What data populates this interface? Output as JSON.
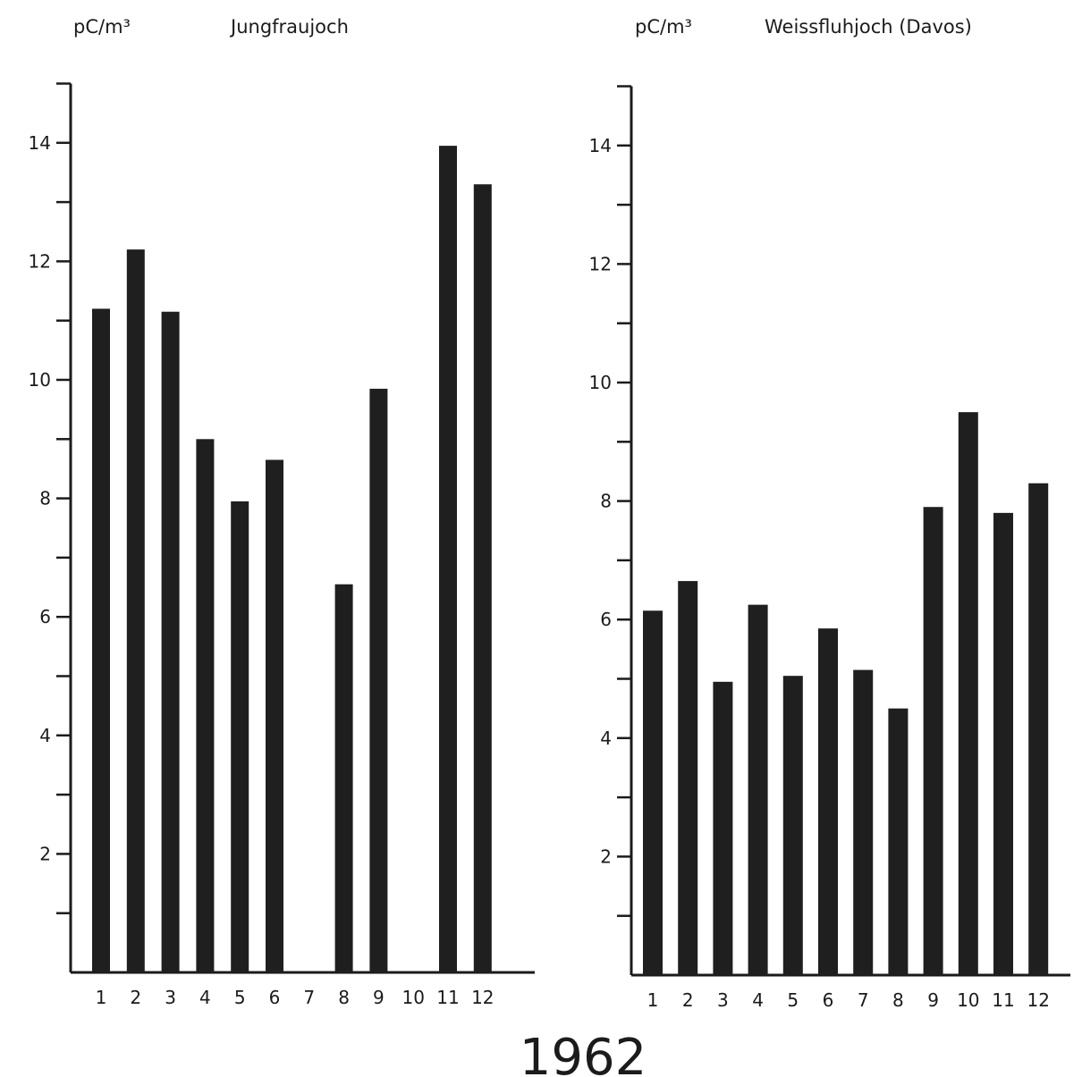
{
  "figure_title": "1962",
  "chart_data": [
    {
      "type": "bar",
      "title": "Jungfraujoch",
      "ylabel": "pC/m³",
      "xlabel": "",
      "ylim": [
        0,
        15
      ],
      "yticks": [
        2,
        4,
        6,
        8,
        10,
        12,
        14
      ],
      "grid": false,
      "categories": [
        "1",
        "2",
        "3",
        "4",
        "5",
        "6",
        "7",
        "8",
        "9",
        "10",
        "11",
        "12"
      ],
      "values": [
        11.2,
        12.2,
        11.15,
        9.0,
        7.95,
        8.65,
        null,
        6.55,
        9.85,
        null,
        13.95,
        13.3
      ]
    },
    {
      "type": "bar",
      "title": "Weissfluhjoch (Davos)",
      "ylabel": "pC/m³",
      "xlabel": "",
      "ylim": [
        0,
        15
      ],
      "yticks": [
        2,
        4,
        6,
        8,
        10,
        12,
        14
      ],
      "grid": false,
      "categories": [
        "1",
        "2",
        "3",
        "4",
        "5",
        "6",
        "7",
        "8",
        "9",
        "10",
        "11",
        "12"
      ],
      "values": [
        6.15,
        6.65,
        4.95,
        6.25,
        5.05,
        5.85,
        5.15,
        4.5,
        7.9,
        9.5,
        7.8,
        8.3
      ]
    }
  ]
}
